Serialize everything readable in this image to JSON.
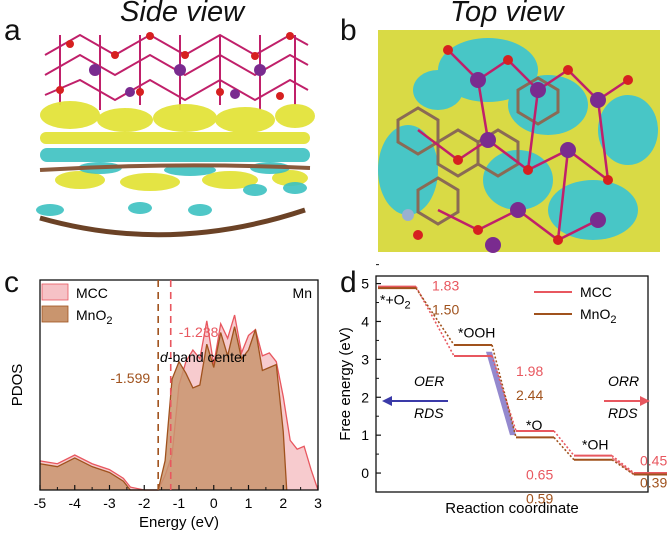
{
  "panels": {
    "a": {
      "letter": "a",
      "title": "Side view"
    },
    "b": {
      "letter": "b",
      "title": "Top view"
    },
    "c": {
      "letter": "c"
    },
    "d": {
      "letter": "d"
    }
  },
  "colors": {
    "mcc": "#e8575f",
    "mno2": "#a0521d",
    "mcc_fill": "#f6c2c6",
    "mno2_fill": "#c9956e",
    "isosurface_yellow": "#e2e23a",
    "isosurface_cyan": "#3cc2c2",
    "oer_arrow": "#3a3aa8",
    "orr_arrow": "#e8575f"
  },
  "chart_data": [
    {
      "type": "area",
      "panel": "c",
      "xlabel": "Energy (eV)",
      "ylabel": "PDOS",
      "xlim": [
        -5,
        3
      ],
      "xticks": [
        "-5",
        "-4",
        "-3",
        "-2",
        "-1",
        "0",
        "1",
        "2",
        "3"
      ],
      "element_label": "Mn",
      "legend": [
        "MCC",
        "MnO2"
      ],
      "series": [
        {
          "name": "MCC",
          "x": [
            -5.0,
            -4.5,
            -4.0,
            -3.5,
            -3.0,
            -2.6,
            -2.4,
            -2.0,
            -1.6,
            -1.4,
            -1.2,
            -1.0,
            -0.8,
            -0.6,
            -0.4,
            -0.2,
            0.0,
            0.2,
            0.4,
            0.6,
            0.8,
            1.0,
            1.2,
            1.4,
            1.6,
            1.8,
            2.0,
            2.2,
            2.4,
            2.6,
            2.8,
            3.0
          ],
          "y": [
            0.1,
            0.09,
            0.12,
            0.09,
            0.07,
            0.04,
            0.01,
            0.0,
            0.0,
            0.05,
            0.12,
            0.36,
            0.44,
            0.48,
            0.45,
            0.58,
            0.43,
            0.57,
            0.52,
            0.6,
            0.47,
            0.53,
            0.55,
            0.46,
            0.47,
            0.44,
            0.32,
            0.17,
            0.14,
            0.15,
            0.07,
            0.0
          ]
        },
        {
          "name": "MnO2",
          "x": [
            -5.0,
            -4.5,
            -4.0,
            -3.5,
            -3.0,
            -2.6,
            -2.4,
            -2.0,
            -1.6,
            -1.4,
            -1.2,
            -1.0,
            -0.8,
            -0.6,
            -0.4,
            -0.2,
            0.0,
            0.2,
            0.4,
            0.6,
            0.8,
            1.0,
            1.2,
            1.4,
            1.6,
            1.8,
            2.0,
            2.1
          ],
          "y": [
            0.09,
            0.08,
            0.11,
            0.08,
            0.06,
            0.03,
            0.0,
            0.0,
            0.0,
            0.1,
            0.38,
            0.44,
            0.4,
            0.35,
            0.36,
            0.5,
            0.42,
            0.54,
            0.46,
            0.56,
            0.45,
            0.48,
            0.55,
            0.41,
            0.42,
            0.43,
            0.2,
            0.0
          ]
        }
      ],
      "markers": [
        {
          "name": "MCC",
          "value": -1.238,
          "label": "-1.238"
        },
        {
          "name": "MnO2",
          "value": -1.599,
          "label": "-1.599"
        }
      ],
      "annotation_italic": "d",
      "annotation": "-band center"
    },
    {
      "type": "line",
      "panel": "d",
      "xlabel": "Reaction coordinate",
      "ylabel": "Free energy (eV)",
      "ylim": [
        -0.5,
        5.2
      ],
      "yticks": [
        "0",
        "1",
        "2",
        "3",
        "4",
        "5"
      ],
      "legend": [
        "MCC",
        "MnO2"
      ],
      "states": [
        "*+O2",
        "*OOH",
        "*O",
        "*OH",
        "*"
      ],
      "series": [
        {
          "name": "MCC",
          "values": [
            4.92,
            3.09,
            1.11,
            0.46,
            0.0
          ]
        },
        {
          "name": "MnO2",
          "values": [
            4.92,
            3.42,
            0.98,
            0.39,
            0.0
          ]
        }
      ],
      "step_labels": {
        "MCC": [
          "1.83",
          "1.98",
          "0.65",
          "0.45"
        ],
        "MnO2": [
          "1.50",
          "2.44",
          "0.59",
          "0.39"
        ]
      },
      "oer_label": [
        "OER",
        "RDS"
      ],
      "orr_label": [
        "ORR",
        "RDS"
      ]
    }
  ]
}
